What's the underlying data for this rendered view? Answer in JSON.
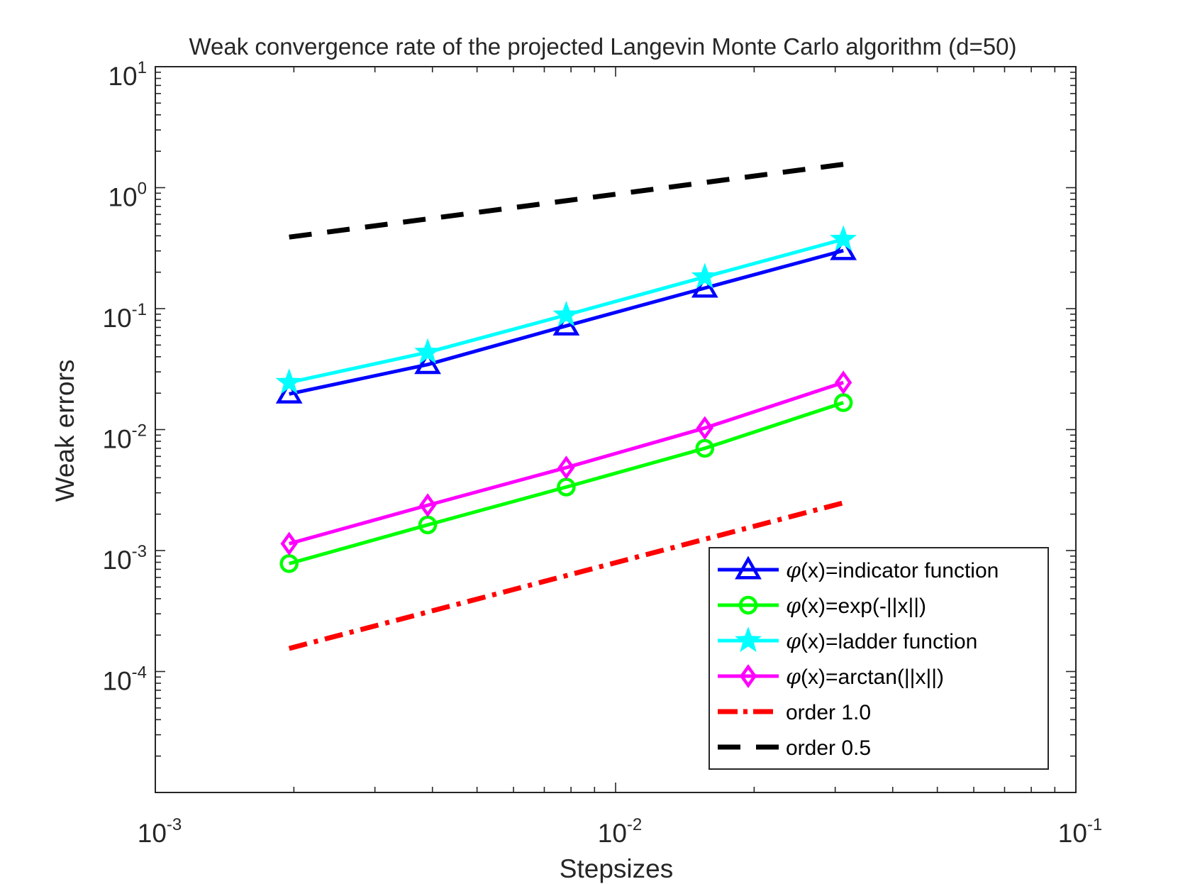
{
  "chart_data": {
    "type": "line",
    "title": "Weak convergence rate of the projected Langevin Monte Carlo algorithm (d=50)",
    "xlabel": "Stepsizes",
    "ylabel": "Weak errors",
    "xscale": "log",
    "yscale": "log",
    "xlim": [
      0.001,
      0.1
    ],
    "ylim": [
      1e-05,
      10
    ],
    "x_ticks": [
      {
        "value": 0.001,
        "base": "10",
        "exp": "-3"
      },
      {
        "value": 0.01,
        "base": "10",
        "exp": "-2"
      },
      {
        "value": 0.1,
        "base": "10",
        "exp": "-1"
      }
    ],
    "y_ticks": [
      {
        "value": 10,
        "base": "10",
        "exp": "1"
      },
      {
        "value": 1,
        "base": "10",
        "exp": "0"
      },
      {
        "value": 0.1,
        "base": "10",
        "exp": "-1"
      },
      {
        "value": 0.01,
        "base": "10",
        "exp": "-2"
      },
      {
        "value": 0.001,
        "base": "10",
        "exp": "-3"
      },
      {
        "value": 0.0001,
        "base": "10",
        "exp": "-4"
      }
    ],
    "x": [
      0.001953125,
      0.00390625,
      0.0078125,
      0.015625,
      0.03125
    ],
    "series": [
      {
        "name": "indicator",
        "legend_prefix": "φ",
        "legend_suffix": "(x)=indicator function",
        "color": "#0000ff",
        "marker": "triangle",
        "dash": "solid",
        "values": [
          0.0197,
          0.0345,
          0.072,
          0.148,
          0.302
        ]
      },
      {
        "name": "exp",
        "legend_prefix": "φ",
        "legend_suffix": "(x)=exp(-||x||)",
        "color": "#00ff00",
        "marker": "circle",
        "dash": "solid",
        "values": [
          0.00078,
          0.00163,
          0.00335,
          0.007,
          0.0167
        ]
      },
      {
        "name": "ladder",
        "legend_prefix": "φ",
        "legend_suffix": "(x)=ladder function",
        "color": "#00ffff",
        "marker": "star",
        "dash": "solid",
        "values": [
          0.0245,
          0.0435,
          0.0885,
          0.183,
          0.374
        ]
      },
      {
        "name": "arctan",
        "legend_prefix": "φ",
        "legend_suffix": "(x)=arctan(||x||)",
        "color": "#ff00ff",
        "marker": "diamond",
        "dash": "solid",
        "values": [
          0.00114,
          0.00237,
          0.00485,
          0.0103,
          0.0245
        ]
      },
      {
        "name": "order 1.0",
        "legend_prefix": "",
        "legend_suffix": "order 1.0",
        "color": "#ff0000",
        "marker": "none",
        "dash": "dashdot",
        "x": [
          0.001953125,
          0.03125
        ],
        "values": [
          0.000155,
          0.00248
        ]
      },
      {
        "name": "order 0.5",
        "legend_prefix": "",
        "legend_suffix": "order 0.5",
        "color": "#000000",
        "marker": "none",
        "dash": "dashed",
        "x": [
          0.001953125,
          0.03125
        ],
        "values": [
          0.39,
          1.56
        ]
      }
    ],
    "legend_position": "bottom-right"
  }
}
